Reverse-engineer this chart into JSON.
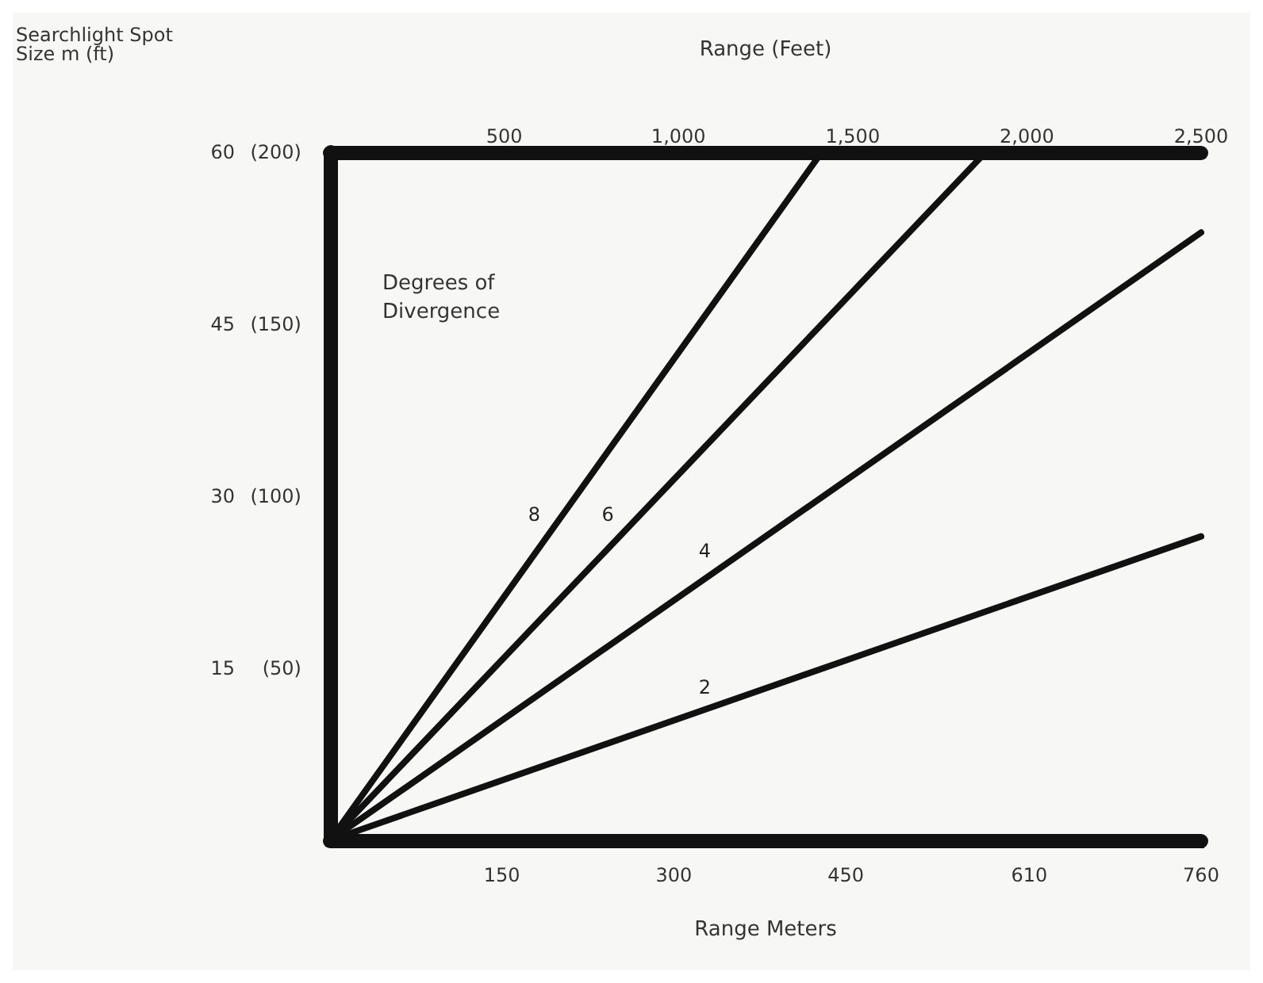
{
  "chart_data": {
    "type": "line",
    "ylabel": "Searchlight Spot Size m (ft)",
    "xlabel": "Range Meters",
    "x2label": "Range (Feet)",
    "legend_title": "Degrees of Divergence",
    "legend": false,
    "grid": false,
    "marker": "none",
    "line_style": "solid",
    "xlim": [
      0,
      760
    ],
    "xticks": [
      150,
      300,
      450,
      610,
      760
    ],
    "x2lim": [
      0,
      2500
    ],
    "x2ticks": [
      {
        "value": 500,
        "label": "500"
      },
      {
        "value": 1000,
        "label": "1,000"
      },
      {
        "value": 1500,
        "label": "1,500"
      },
      {
        "value": 2000,
        "label": "2,000"
      },
      {
        "value": 2500,
        "label": "2,500"
      }
    ],
    "ylim": [
      0,
      60
    ],
    "yticks": [
      15,
      30,
      45,
      60
    ],
    "y2lim": [
      0,
      200
    ],
    "y2ticks": [
      {
        "value": 50,
        "label": "(50)"
      },
      {
        "value": 100,
        "label": "(100)"
      },
      {
        "value": 150,
        "label": "(150)"
      },
      {
        "value": 200,
        "label": "(200)"
      }
    ],
    "series": [
      {
        "name": "8",
        "color": "#111111",
        "x": [
          0,
          429
        ],
        "values": [
          0,
          60
        ]
      },
      {
        "name": "6",
        "color": "#111111",
        "x": [
          0,
          572
        ],
        "values": [
          0,
          60
        ]
      },
      {
        "name": "4",
        "color": "#111111",
        "x": [
          0,
          760
        ],
        "values": [
          0,
          53
        ]
      },
      {
        "name": "2",
        "color": "#111111",
        "x": [
          0,
          760
        ],
        "values": [
          0,
          26.5
        ]
      }
    ]
  }
}
